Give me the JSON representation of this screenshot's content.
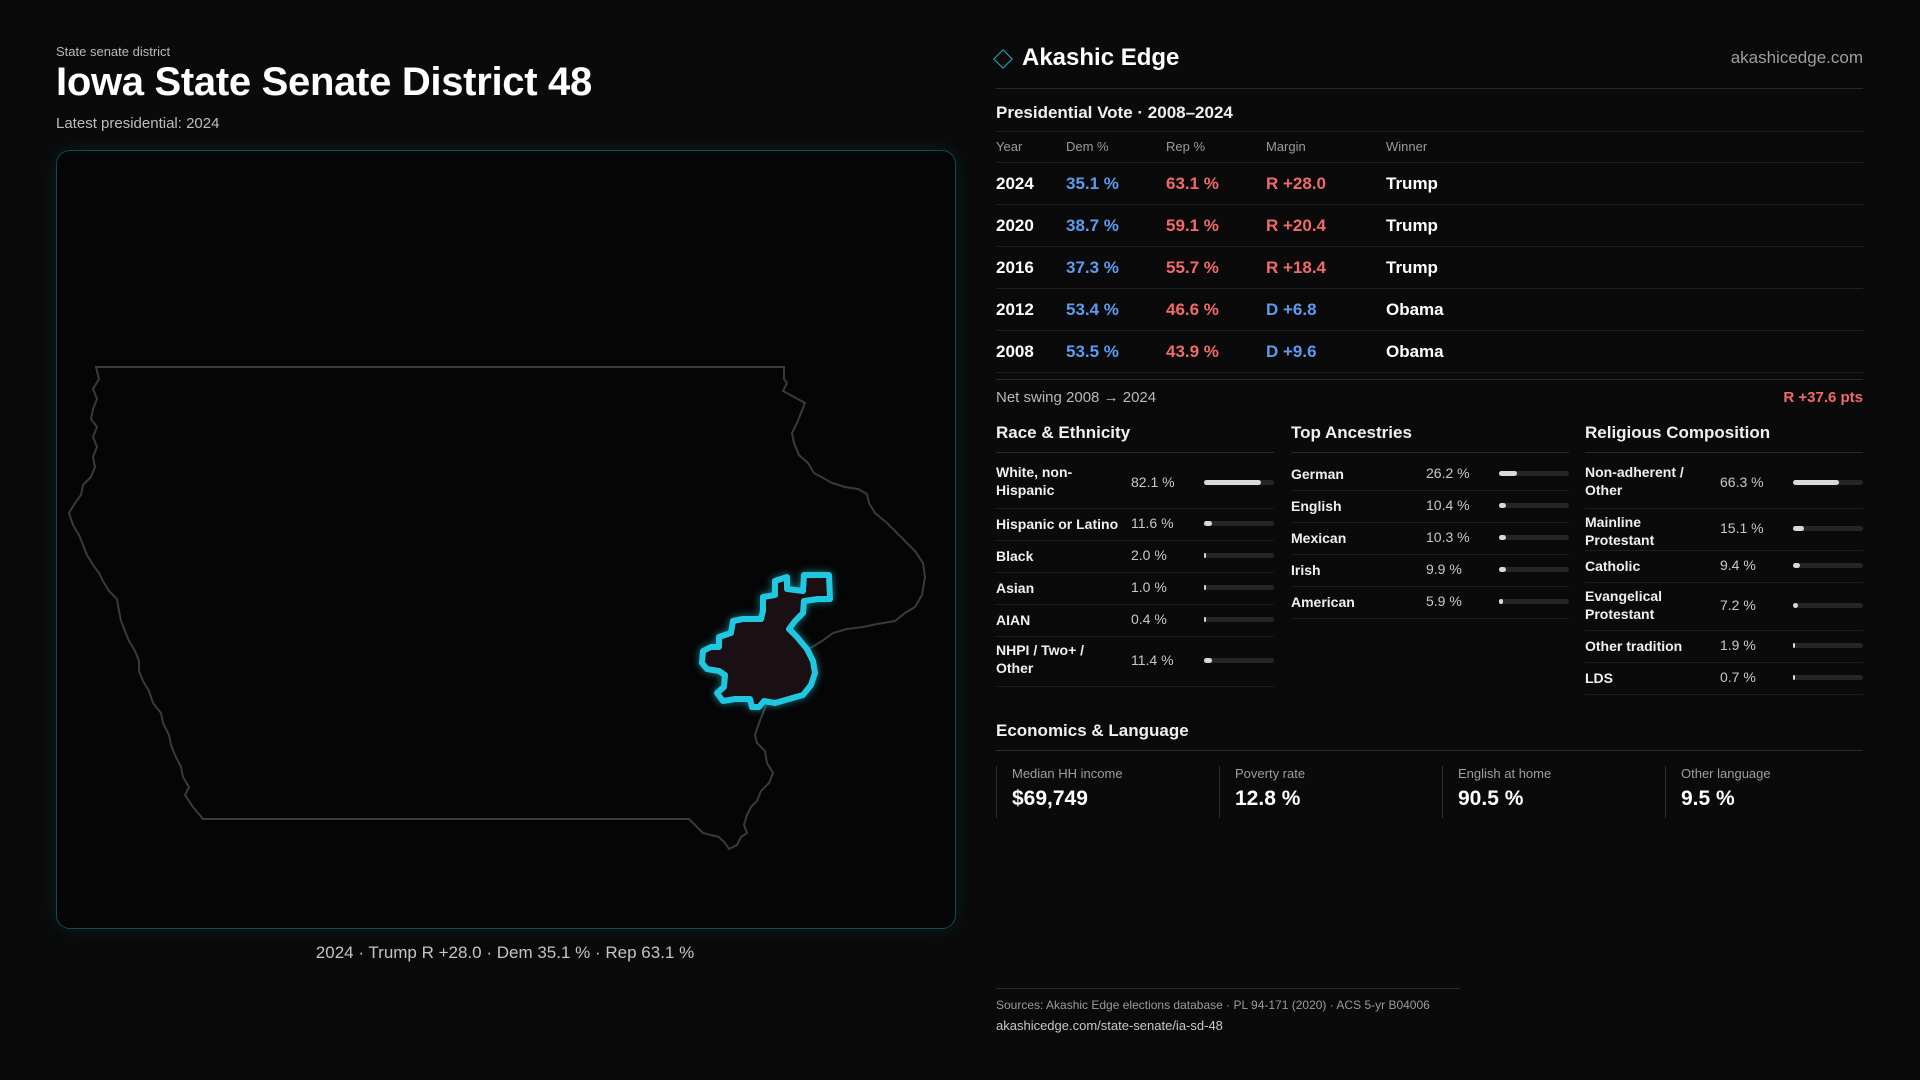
{
  "header": {
    "eyebrow": "State senate district",
    "title": "Iowa State Senate District 48",
    "subtitle": "Latest presidential: 2024"
  },
  "map": {
    "caption": "2024 · Trump R +28.0 · Dem 35.1 % · Rep 63.1 %",
    "state_outline_color": "#3a3a3a",
    "district_outline_color": "#1fc8e0",
    "district_fill_color": "#1a0f12"
  },
  "brand": {
    "name": "Akashic Edge",
    "url": "akashicedge.com",
    "icon": "diamond-icon"
  },
  "presidential": {
    "title": "Presidential Vote · 2008–2024",
    "columns": [
      "Year",
      "Dem %",
      "Rep %",
      "Margin",
      "Winner"
    ],
    "rows": [
      {
        "year": "2024",
        "dem": "35.1 %",
        "rep": "63.1 %",
        "margin": "R +28.0",
        "winner": "Trump"
      },
      {
        "year": "2020",
        "dem": "38.7 %",
        "rep": "59.1 %",
        "margin": "R +20.4",
        "winner": "Trump"
      },
      {
        "year": "2016",
        "dem": "37.3 %",
        "rep": "55.7 %",
        "margin": "R +18.4",
        "winner": "Trump"
      },
      {
        "year": "2012",
        "dem": "53.4 %",
        "rep": "46.6 %",
        "margin": "D +6.8",
        "winner": "Obama"
      },
      {
        "year": "2008",
        "dem": "53.5 %",
        "rep": "43.9 %",
        "margin": "D +9.6",
        "winner": "Obama"
      }
    ],
    "swing_label": "Net swing 2008 → 2024",
    "swing_value": "R +37.6 pts"
  },
  "race": {
    "title": "Race & Ethnicity",
    "rows": [
      {
        "label": "White, non-Hispanic",
        "value": "82.1 %",
        "pct": 82.1
      },
      {
        "label": "Hispanic or Latino",
        "value": "11.6 %",
        "pct": 11.6
      },
      {
        "label": "Black",
        "value": "2.0 %",
        "pct": 2.0
      },
      {
        "label": "Asian",
        "value": "1.0 %",
        "pct": 1.0
      },
      {
        "label": "AIAN",
        "value": "0.4 %",
        "pct": 0.4
      },
      {
        "label": "NHPI / Two+ / Other",
        "value": "11.4 %",
        "pct": 11.4
      }
    ]
  },
  "ancestry": {
    "title": "Top Ancestries",
    "rows": [
      {
        "label": "German",
        "value": "26.2 %",
        "pct": 26.2
      },
      {
        "label": "English",
        "value": "10.4 %",
        "pct": 10.4
      },
      {
        "label": "Mexican",
        "value": "10.3 %",
        "pct": 10.3
      },
      {
        "label": "Irish",
        "value": "9.9 %",
        "pct": 9.9
      },
      {
        "label": "American",
        "value": "5.9 %",
        "pct": 5.9
      }
    ]
  },
  "religion": {
    "title": "Religious Composition",
    "rows": [
      {
        "label": "Non-adherent / Other",
        "value": "66.3 %",
        "pct": 66.3
      },
      {
        "label": "Mainline Protestant",
        "value": "15.1 %",
        "pct": 15.1
      },
      {
        "label": "Catholic",
        "value": "9.4 %",
        "pct": 9.4
      },
      {
        "label": "Evangelical Protestant",
        "value": "7.2 %",
        "pct": 7.2
      },
      {
        "label": "Other tradition",
        "value": "1.9 %",
        "pct": 1.9
      },
      {
        "label": "LDS",
        "value": "0.7 %",
        "pct": 0.7
      }
    ]
  },
  "economics": {
    "title": "Economics & Language",
    "stats": [
      {
        "label": "Median HH income",
        "value": "$69,749"
      },
      {
        "label": "Poverty rate",
        "value": "12.8 %"
      },
      {
        "label": "English at home",
        "value": "90.5 %"
      },
      {
        "label": "Other language",
        "value": "9.5 %"
      }
    ]
  },
  "sources": {
    "line1": "Sources: Akashic Edge elections database · PL 94-171 (2020) · ACS 5-yr B04006",
    "line2": "akashicedge.com/state-senate/ia-sd-48"
  }
}
